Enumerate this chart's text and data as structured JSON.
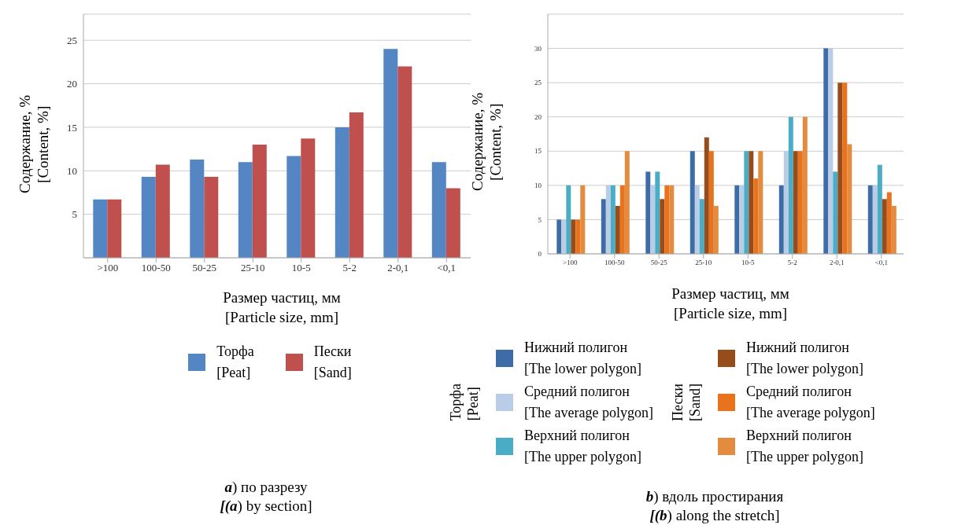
{
  "chart_data": [
    {
      "type": "bar",
      "xlabel": "Размер частиц, мм [Particle size, mm]",
      "ylabel": "Содержание, % [Content, %]",
      "categories": [
        ">100",
        "100-50",
        "50-25",
        "25-10",
        "10-5",
        "5-2",
        "2-0,1",
        "<0,1"
      ],
      "series": [
        {
          "name": "Торфа [Peat]",
          "color": "#5586c4",
          "values": [
            6.7,
            9.3,
            11.3,
            11,
            11.7,
            15,
            24,
            11
          ]
        },
        {
          "name": "Пески [Sand]",
          "color": "#c0504d",
          "values": [
            6.7,
            10.7,
            9.3,
            13,
            13.7,
            16.7,
            22,
            8
          ]
        }
      ],
      "ylim": [
        0,
        28
      ],
      "yticks": [
        5,
        10,
        15,
        20,
        25
      ],
      "grid": "y",
      "legend": "bottom",
      "annotations": [
        "a) по разрезу",
        "[(a) by section]"
      ]
    },
    {
      "type": "bar",
      "xlabel": "Размер частиц, мм [Particle size, mm]",
      "ylabel": "Содержание, % [Content, %]",
      "categories": [
        ">100",
        "100-50",
        "50-25",
        "25-10",
        "10-5",
        "5-2",
        "2-0,1",
        "<0,1"
      ],
      "series": [
        {
          "name": "Нижний полигон [The lower polygon]",
          "color": "#3e6ca6",
          "values": [
            5,
            8,
            12,
            15,
            10,
            10,
            30,
            10
          ]
        },
        {
          "name": "Средний полигон [The average polygon]",
          "color": "#b9cde6",
          "values": [
            5,
            10,
            10,
            10,
            10,
            15,
            30,
            10
          ]
        },
        {
          "name": "Верхний полигон [The upper polygon]",
          "color": "#4bacc6",
          "values": [
            10,
            10,
            12,
            8,
            15,
            20,
            12,
            13
          ]
        },
        {
          "name": "Нижний полигон [The lower polygon]",
          "color": "#974c1c",
          "values": [
            5,
            7,
            8,
            17,
            15,
            15,
            25,
            8
          ]
        },
        {
          "name": "Средний полигон [The average polygon]",
          "color": "#e8731c",
          "values": [
            5,
            10,
            10,
            15,
            11,
            15,
            25,
            9
          ]
        },
        {
          "name": "Верхний полигон [The upper polygon]",
          "color": "#e38b3e",
          "values": [
            10,
            15,
            10,
            7,
            15,
            20,
            16,
            7
          ]
        }
      ],
      "ylim": [
        0,
        35
      ],
      "yticks": [
        0,
        5,
        10,
        15,
        20,
        25,
        30
      ],
      "grid": "y",
      "legend": "bottom",
      "annotations": [
        "Торфа [Peat]",
        "Пески [Sand]",
        "b) вдоль простирания",
        "[(b) along the stretch]"
      ]
    }
  ]
}
